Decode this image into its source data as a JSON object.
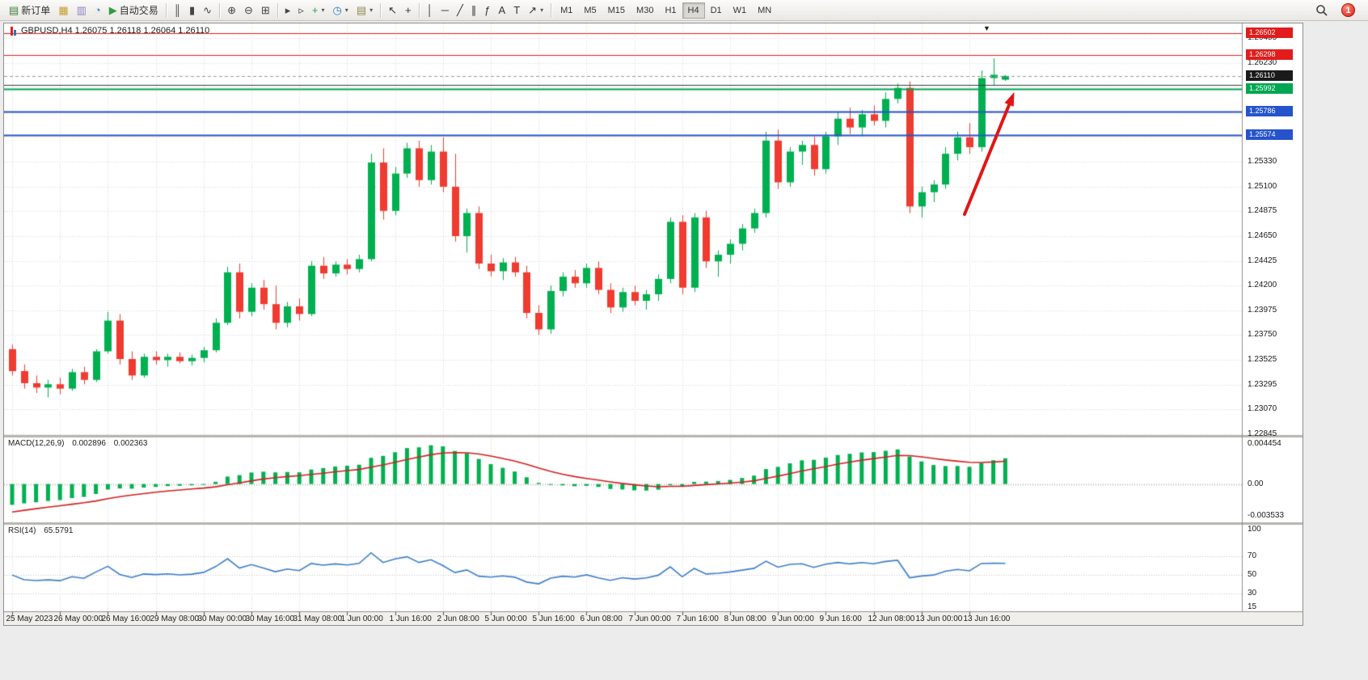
{
  "toolbar": {
    "buttons": [
      {
        "name": "new-order",
        "glyph": "▤",
        "glyph_color": "#3b7f3b",
        "label": "新订单"
      },
      {
        "name": "new-chart",
        "glyph": "▦",
        "glyph_color": "#c79a2f"
      },
      {
        "name": "profiles",
        "glyph": "▥",
        "glyph_color": "#8d7fc0"
      },
      {
        "name": "refresh",
        "glyph": "◔",
        "glyph_color": "#2f7fbf"
      },
      {
        "name": "auto-trading",
        "glyph": "▶",
        "glyph_color": "#2f9e44",
        "label": "自动交易"
      },
      {
        "sep": true
      },
      {
        "name": "bars-mode",
        "glyph": "║",
        "glyph_color": "#444444"
      },
      {
        "name": "candles-mode",
        "glyph": "▮",
        "glyph_color": "#444444"
      },
      {
        "name": "line-mode",
        "glyph": "∿",
        "glyph_color": "#444444"
      },
      {
        "sep": true
      },
      {
        "name": "zoom-in",
        "glyph": "⊕",
        "glyph_color": "#444444"
      },
      {
        "name": "zoom-out",
        "glyph": "⊖",
        "glyph_color": "#444444"
      },
      {
        "name": "tile-windows",
        "glyph": "⊞",
        "glyph_color": "#444444"
      },
      {
        "sep": true
      },
      {
        "name": "auto-scroll",
        "glyph": "▸",
        "glyph_color": "#444444"
      },
      {
        "name": "chart-shift",
        "glyph": "▹",
        "glyph_color": "#444444"
      },
      {
        "name": "add-indicator",
        "glyph": "+",
        "glyph_color": "#2f9e44",
        "dropdown": true
      },
      {
        "name": "period-selector",
        "glyph": "◷",
        "glyph_color": "#2f7fbf",
        "dropdown": true
      },
      {
        "name": "template-selector",
        "glyph": "▤",
        "glyph_color": "#8a8a55",
        "dropdown": true
      },
      {
        "sep": true
      },
      {
        "name": "cursor",
        "glyph": "↖",
        "glyph_color": "#333333"
      },
      {
        "name": "crosshair",
        "glyph": "+",
        "glyph_color": "#333333"
      },
      {
        "sep": true
      },
      {
        "name": "vertical-line",
        "glyph": "│",
        "glyph_color": "#333333"
      },
      {
        "name": "horizontal-line",
        "glyph": "─",
        "glyph_color": "#333333"
      },
      {
        "name": "trendline",
        "glyph": "╱",
        "glyph_color": "#333333"
      },
      {
        "name": "channel",
        "glyph": "∥",
        "glyph_color": "#333333"
      },
      {
        "name": "fibonacci",
        "glyph": "ƒ",
        "glyph_color": "#333333"
      },
      {
        "name": "text",
        "glyph": "A",
        "glyph_color": "#333333"
      },
      {
        "name": "text-label",
        "glyph": "T",
        "glyph_color": "#333333"
      },
      {
        "name": "arrows-tool",
        "glyph": "↗",
        "glyph_color": "#333333",
        "dropdown": true
      },
      {
        "sep": true
      }
    ],
    "timeframes": [
      "M1",
      "M5",
      "M15",
      "M30",
      "H1",
      "H4",
      "D1",
      "W1",
      "MN"
    ],
    "active_timeframe": "H4",
    "notification_count": "1"
  },
  "chart": {
    "title": "GBPUSD,H4 1.26075 1.26118 1.26064 1.26110",
    "shift_marker": "▼",
    "price_axis_ticks": [
      "1.26455",
      "1.26230",
      "1.26005",
      "1.25780",
      "1.25555",
      "1.25330",
      "1.25100",
      "1.24875",
      "1.24650",
      "1.24425",
      "1.24200",
      "1.23975",
      "1.23750",
      "1.23525",
      "1.23295",
      "1.23070",
      "1.22845"
    ],
    "badges": [
      {
        "text": "1.26502",
        "price": 1.26502,
        "bg": "#e21c1c"
      },
      {
        "text": "1.26298",
        "price": 1.26298,
        "bg": "#e21c1c"
      },
      {
        "text": "1.26110",
        "price": 1.2611,
        "bg": "#1a1a1a"
      },
      {
        "text": "1.25992",
        "price": 1.25992,
        "bg": "#00a651"
      },
      {
        "text": "1.25786",
        "price": 1.25786,
        "bg": "#2553cc"
      },
      {
        "text": "1.25574",
        "price": 1.25574,
        "bg": "#2553cc"
      }
    ],
    "hlines": [
      {
        "price": 1.26502,
        "color": "#e21c1c",
        "width": 1,
        "style": "solid"
      },
      {
        "price": 1.26298,
        "color": "#e21c1c",
        "width": 1,
        "style": "solid"
      },
      {
        "price": 1.2611,
        "color": "#999999",
        "width": 1,
        "style": "dash"
      },
      {
        "price": 1.2603,
        "color": "#3a3a3a",
        "width": 1,
        "style": "solid"
      },
      {
        "price": 1.25992,
        "color": "#00a651",
        "width": 2,
        "style": "solid"
      },
      {
        "price": 1.25786,
        "color": "#2553cc",
        "width": 2,
        "style": "solid"
      },
      {
        "price": 1.25574,
        "color": "#2553cc",
        "width": 2,
        "style": "solid"
      }
    ],
    "arrow_color": "#e01616"
  },
  "chart_data": {
    "type": "candlestick",
    "symbol": "GBPUSD",
    "timeframe": "H4",
    "ohlc_current": {
      "open": "1.26075",
      "high": "1.26118",
      "low": "1.26064",
      "close": "1.26110"
    },
    "ylim": [
      1.22845,
      1.26588
    ],
    "bars_per_label": 4,
    "candle_up_color": "#00b050",
    "candle_down_color": "#ef3b30",
    "x_labels": [
      "25 May 2023",
      "26 May 00:00",
      "26 May 16:00",
      "29 May 08:00",
      "30 May 00:00",
      "30 May 16:00",
      "31 May 08:00",
      "1 Jun 00:00",
      "1 Jun 16:00",
      "2 Jun 08:00",
      "5 Jun 00:00",
      "5 Jun 16:00",
      "6 Jun 08:00",
      "7 Jun 00:00",
      "7 Jun 16:00",
      "8 Jun 08:00",
      "9 Jun 00:00",
      "9 Jun 16:00",
      "12 Jun 08:00",
      "13 Jun 00:00",
      "13 Jun 16:00"
    ],
    "ohlc": [
      [
        1.2362,
        1.2366,
        1.2338,
        1.2342
      ],
      [
        1.2342,
        1.2348,
        1.2326,
        1.2331
      ],
      [
        1.2331,
        1.2338,
        1.2322,
        1.2327
      ],
      [
        1.2327,
        1.2334,
        1.2318,
        1.233
      ],
      [
        1.233,
        1.2336,
        1.2321,
        1.2326
      ],
      [
        1.2326,
        1.2344,
        1.2324,
        1.2341
      ],
      [
        1.2341,
        1.2346,
        1.233,
        1.2334
      ],
      [
        1.2334,
        1.2362,
        1.2332,
        1.236
      ],
      [
        1.236,
        1.2396,
        1.2358,
        1.2388
      ],
      [
        1.2388,
        1.2394,
        1.2348,
        1.2353
      ],
      [
        1.2353,
        1.236,
        1.2334,
        1.2338
      ],
      [
        1.2338,
        1.2358,
        1.2336,
        1.2355
      ],
      [
        1.2355,
        1.236,
        1.2348,
        1.2352
      ],
      [
        1.2352,
        1.2358,
        1.2346,
        1.2355
      ],
      [
        1.2355,
        1.2359,
        1.2349,
        1.2351
      ],
      [
        1.2351,
        1.2357,
        1.2347,
        1.2354
      ],
      [
        1.2354,
        1.2364,
        1.235,
        1.2361
      ],
      [
        1.2361,
        1.239,
        1.2359,
        1.2386
      ],
      [
        1.2386,
        1.2437,
        1.2384,
        1.2432
      ],
      [
        1.2432,
        1.244,
        1.239,
        1.2396
      ],
      [
        1.2396,
        1.2422,
        1.2392,
        1.2418
      ],
      [
        1.2418,
        1.2425,
        1.2398,
        1.2403
      ],
      [
        1.2403,
        1.242,
        1.238,
        1.2386
      ],
      [
        1.2386,
        1.2405,
        1.2382,
        1.2401
      ],
      [
        1.2401,
        1.2408,
        1.2388,
        1.2394
      ],
      [
        1.2394,
        1.2442,
        1.2392,
        1.2438
      ],
      [
        1.2438,
        1.2446,
        1.2426,
        1.2431
      ],
      [
        1.2431,
        1.2442,
        1.2428,
        1.2439
      ],
      [
        1.2439,
        1.2444,
        1.243,
        1.2435
      ],
      [
        1.2435,
        1.2448,
        1.2432,
        1.2444
      ],
      [
        1.2444,
        1.254,
        1.2442,
        1.2532
      ],
      [
        1.2532,
        1.2545,
        1.248,
        1.2488
      ],
      [
        1.2488,
        1.2528,
        1.2484,
        1.2522
      ],
      [
        1.2522,
        1.255,
        1.2518,
        1.2545
      ],
      [
        1.2545,
        1.2552,
        1.251,
        1.2516
      ],
      [
        1.2516,
        1.2548,
        1.2512,
        1.2542
      ],
      [
        1.2542,
        1.2555,
        1.2505,
        1.251
      ],
      [
        1.251,
        1.254,
        1.246,
        1.2465
      ],
      [
        1.2465,
        1.249,
        1.245,
        1.2486
      ],
      [
        1.2486,
        1.2492,
        1.2435,
        1.244
      ],
      [
        1.244,
        1.2448,
        1.2428,
        1.2433
      ],
      [
        1.2433,
        1.2445,
        1.2425,
        1.2441
      ],
      [
        1.2441,
        1.2446,
        1.2428,
        1.2432
      ],
      [
        1.2432,
        1.2438,
        1.239,
        1.2395
      ],
      [
        1.2395,
        1.2402,
        1.2375,
        1.238
      ],
      [
        1.238,
        1.242,
        1.2376,
        1.2415
      ],
      [
        1.2415,
        1.2432,
        1.241,
        1.2428
      ],
      [
        1.2428,
        1.2434,
        1.2418,
        1.2422
      ],
      [
        1.2422,
        1.244,
        1.2418,
        1.2436
      ],
      [
        1.2436,
        1.2442,
        1.2412,
        1.2416
      ],
      [
        1.2416,
        1.2422,
        1.2395,
        1.24
      ],
      [
        1.24,
        1.2418,
        1.2396,
        1.2414
      ],
      [
        1.2414,
        1.242,
        1.2402,
        1.2406
      ],
      [
        1.2406,
        1.2416,
        1.2398,
        1.2412
      ],
      [
        1.2412,
        1.243,
        1.2406,
        1.2426
      ],
      [
        1.2426,
        1.2482,
        1.2422,
        1.2478
      ],
      [
        1.2478,
        1.2484,
        1.2412,
        1.2418
      ],
      [
        1.2418,
        1.2486,
        1.2414,
        1.2482
      ],
      [
        1.2482,
        1.2488,
        1.2436,
        1.2442
      ],
      [
        1.2442,
        1.2452,
        1.2428,
        1.2448
      ],
      [
        1.2448,
        1.2462,
        1.244,
        1.2458
      ],
      [
        1.2458,
        1.2476,
        1.2452,
        1.2472
      ],
      [
        1.2472,
        1.249,
        1.2468,
        1.2486
      ],
      [
        1.2486,
        1.256,
        1.2482,
        1.2552
      ],
      [
        1.2552,
        1.2562,
        1.2508,
        1.2514
      ],
      [
        1.2514,
        1.2546,
        1.251,
        1.2542
      ],
      [
        1.2542,
        1.2552,
        1.253,
        1.2548
      ],
      [
        1.2548,
        1.2556,
        1.252,
        1.2526
      ],
      [
        1.2526,
        1.256,
        1.2522,
        1.2556
      ],
      [
        1.2556,
        1.2578,
        1.2548,
        1.2572
      ],
      [
        1.2572,
        1.2582,
        1.2558,
        1.2564
      ],
      [
        1.2564,
        1.258,
        1.2556,
        1.2576
      ],
      [
        1.2576,
        1.2584,
        1.2566,
        1.257
      ],
      [
        1.257,
        1.2596,
        1.2564,
        1.259
      ],
      [
        1.259,
        1.2604,
        1.2586,
        1.26
      ],
      [
        1.26,
        1.2606,
        1.2486,
        1.2492
      ],
      [
        1.2492,
        1.251,
        1.2482,
        1.2505
      ],
      [
        1.2505,
        1.2516,
        1.2496,
        1.2512
      ],
      [
        1.2512,
        1.2546,
        1.2508,
        1.254
      ],
      [
        1.254,
        1.256,
        1.2534,
        1.2555
      ],
      [
        1.2555,
        1.2568,
        1.254,
        1.2546
      ],
      [
        1.2546,
        1.2616,
        1.2542,
        1.2609
      ],
      [
        1.2609,
        1.2627,
        1.2602,
        1.2612
      ],
      [
        1.26075,
        1.26118,
        1.26064,
        1.2611
      ]
    ],
    "indicators": [
      {
        "type": "MACD",
        "label": "MACD(12,26,9)",
        "params": [
          12,
          26,
          9
        ],
        "value_main": "0.002896",
        "value_signal": "0.002363",
        "axis_ticks": [
          "0.004454",
          "0.00",
          "-0.003533"
        ],
        "histogram_color": "#00b050",
        "signal_color": "#d31f1f"
      },
      {
        "type": "RSI",
        "label": "RSI(14)",
        "params": [
          14
        ],
        "value": "65.5791",
        "axis_ticks": [
          "100",
          "70",
          "50",
          "30",
          "15"
        ],
        "levels": [
          70,
          50,
          30
        ],
        "line_color": "#3d7ec9"
      }
    ]
  }
}
